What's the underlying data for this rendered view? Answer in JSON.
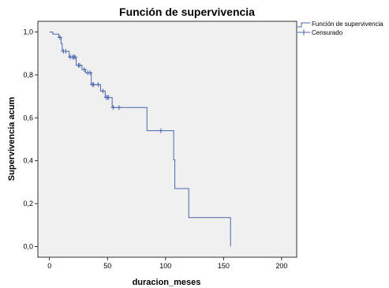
{
  "chart_data": {
    "type": "line",
    "title": "Función de supervivencia",
    "xlabel": "duracion_meses",
    "ylabel": "Supervivencia acum",
    "xlim": [
      -10,
      213
    ],
    "ylim": [
      -0.05,
      1.05
    ],
    "x_ticks": [
      {
        "value": 0,
        "label": "0"
      },
      {
        "value": 50,
        "label": "50"
      },
      {
        "value": 100,
        "label": "100"
      },
      {
        "value": 150,
        "label": "150"
      },
      {
        "value": 200,
        "label": "200"
      }
    ],
    "y_ticks": [
      {
        "value": 0.0,
        "label": "0,0"
      },
      {
        "value": 0.2,
        "label": "0,2"
      },
      {
        "value": 0.4,
        "label": "0,4"
      },
      {
        "value": 0.6,
        "label": "0,6"
      },
      {
        "value": 0.8,
        "label": "0,8"
      },
      {
        "value": 1.0,
        "label": "1,0"
      }
    ],
    "grid": false,
    "legend_position": "top-right outside plot",
    "plot_background": "#f0f0f0",
    "line_color": "#4a66ac",
    "series": [
      {
        "name": "Función de supervivencia",
        "step_points": [
          [
            0,
            1.0
          ],
          [
            3,
            1.0
          ],
          [
            3,
            0.99
          ],
          [
            8,
            0.99
          ],
          [
            8,
            0.975
          ],
          [
            10,
            0.975
          ],
          [
            10,
            0.945
          ],
          [
            11,
            0.945
          ],
          [
            11,
            0.91
          ],
          [
            17,
            0.91
          ],
          [
            17,
            0.883
          ],
          [
            23,
            0.883
          ],
          [
            23,
            0.845
          ],
          [
            28,
            0.845
          ],
          [
            28,
            0.825
          ],
          [
            31,
            0.825
          ],
          [
            31,
            0.81
          ],
          [
            36,
            0.81
          ],
          [
            36,
            0.755
          ],
          [
            44,
            0.755
          ],
          [
            44,
            0.725
          ],
          [
            48,
            0.725
          ],
          [
            48,
            0.695
          ],
          [
            54,
            0.695
          ],
          [
            54,
            0.648
          ],
          [
            84,
            0.648
          ],
          [
            84,
            0.54
          ],
          [
            107,
            0.54
          ],
          [
            107,
            0.405
          ],
          [
            108,
            0.405
          ],
          [
            108,
            0.27
          ],
          [
            120,
            0.27
          ],
          [
            120,
            0.135
          ],
          [
            156,
            0.135
          ],
          [
            156,
            0.0
          ]
        ]
      },
      {
        "name": "Censurado",
        "points": [
          [
            9,
            0.975
          ],
          [
            12,
            0.91
          ],
          [
            14,
            0.91
          ],
          [
            18,
            0.883
          ],
          [
            20,
            0.883
          ],
          [
            21,
            0.883
          ],
          [
            22,
            0.883
          ],
          [
            25,
            0.845
          ],
          [
            26,
            0.845
          ],
          [
            30,
            0.825
          ],
          [
            33,
            0.81
          ],
          [
            35,
            0.81
          ],
          [
            37,
            0.755
          ],
          [
            38,
            0.755
          ],
          [
            42,
            0.755
          ],
          [
            46,
            0.725
          ],
          [
            49,
            0.695
          ],
          [
            50,
            0.695
          ],
          [
            51,
            0.695
          ],
          [
            55,
            0.648
          ],
          [
            60,
            0.648
          ],
          [
            96,
            0.54
          ]
        ]
      }
    ]
  }
}
